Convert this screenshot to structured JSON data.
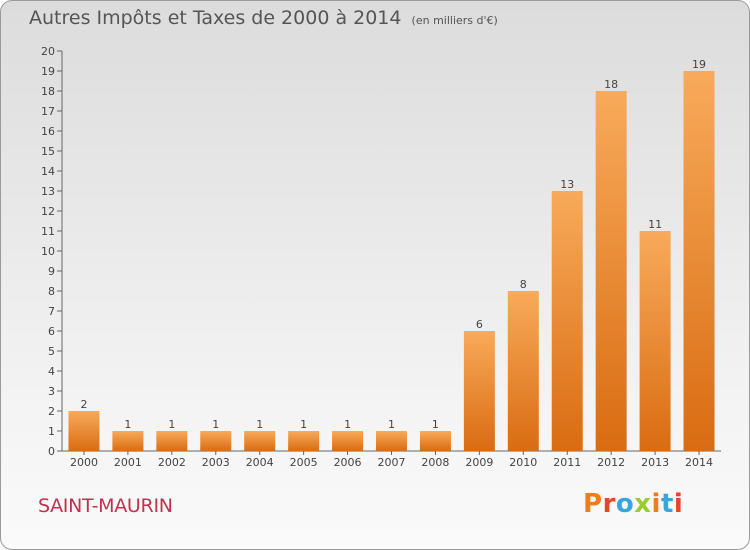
{
  "title": {
    "main": "Autres Impôts et Taxes de 2000 à 2014",
    "unit": "(en milliers d'€)"
  },
  "commune": "SAINT-MAURIN",
  "logo": {
    "letters": [
      "P",
      "r",
      "o",
      "x",
      "i",
      "t",
      "i"
    ],
    "colors": [
      "#f07c1b",
      "#e8452c",
      "#3aa4dc",
      "#9acd32",
      "#f07c1b",
      "#3aa4dc",
      "#e8452c"
    ]
  },
  "colors": {
    "bar_light": "#f8aa5a",
    "bar_dark": "#d96c12",
    "axis": "#666666",
    "text": "#444444"
  },
  "chart_data": {
    "type": "bar",
    "title": "Autres Impôts et Taxes de 2000 à 2014",
    "subtitle": "(en milliers d'€)",
    "categories": [
      "2000",
      "2001",
      "2002",
      "2003",
      "2004",
      "2005",
      "2006",
      "2007",
      "2008",
      "2009",
      "2010",
      "2011",
      "2012",
      "2013",
      "2014"
    ],
    "values": [
      2,
      1,
      1,
      1,
      1,
      1,
      1,
      1,
      1,
      6,
      8,
      13,
      18,
      11,
      19
    ],
    "ylim": [
      0,
      20
    ],
    "yticks": [
      0,
      1,
      2,
      3,
      4,
      5,
      6,
      7,
      8,
      9,
      10,
      11,
      12,
      13,
      14,
      15,
      16,
      17,
      18,
      19,
      20
    ],
    "data_labels": true,
    "grid": false,
    "legend": "none"
  }
}
